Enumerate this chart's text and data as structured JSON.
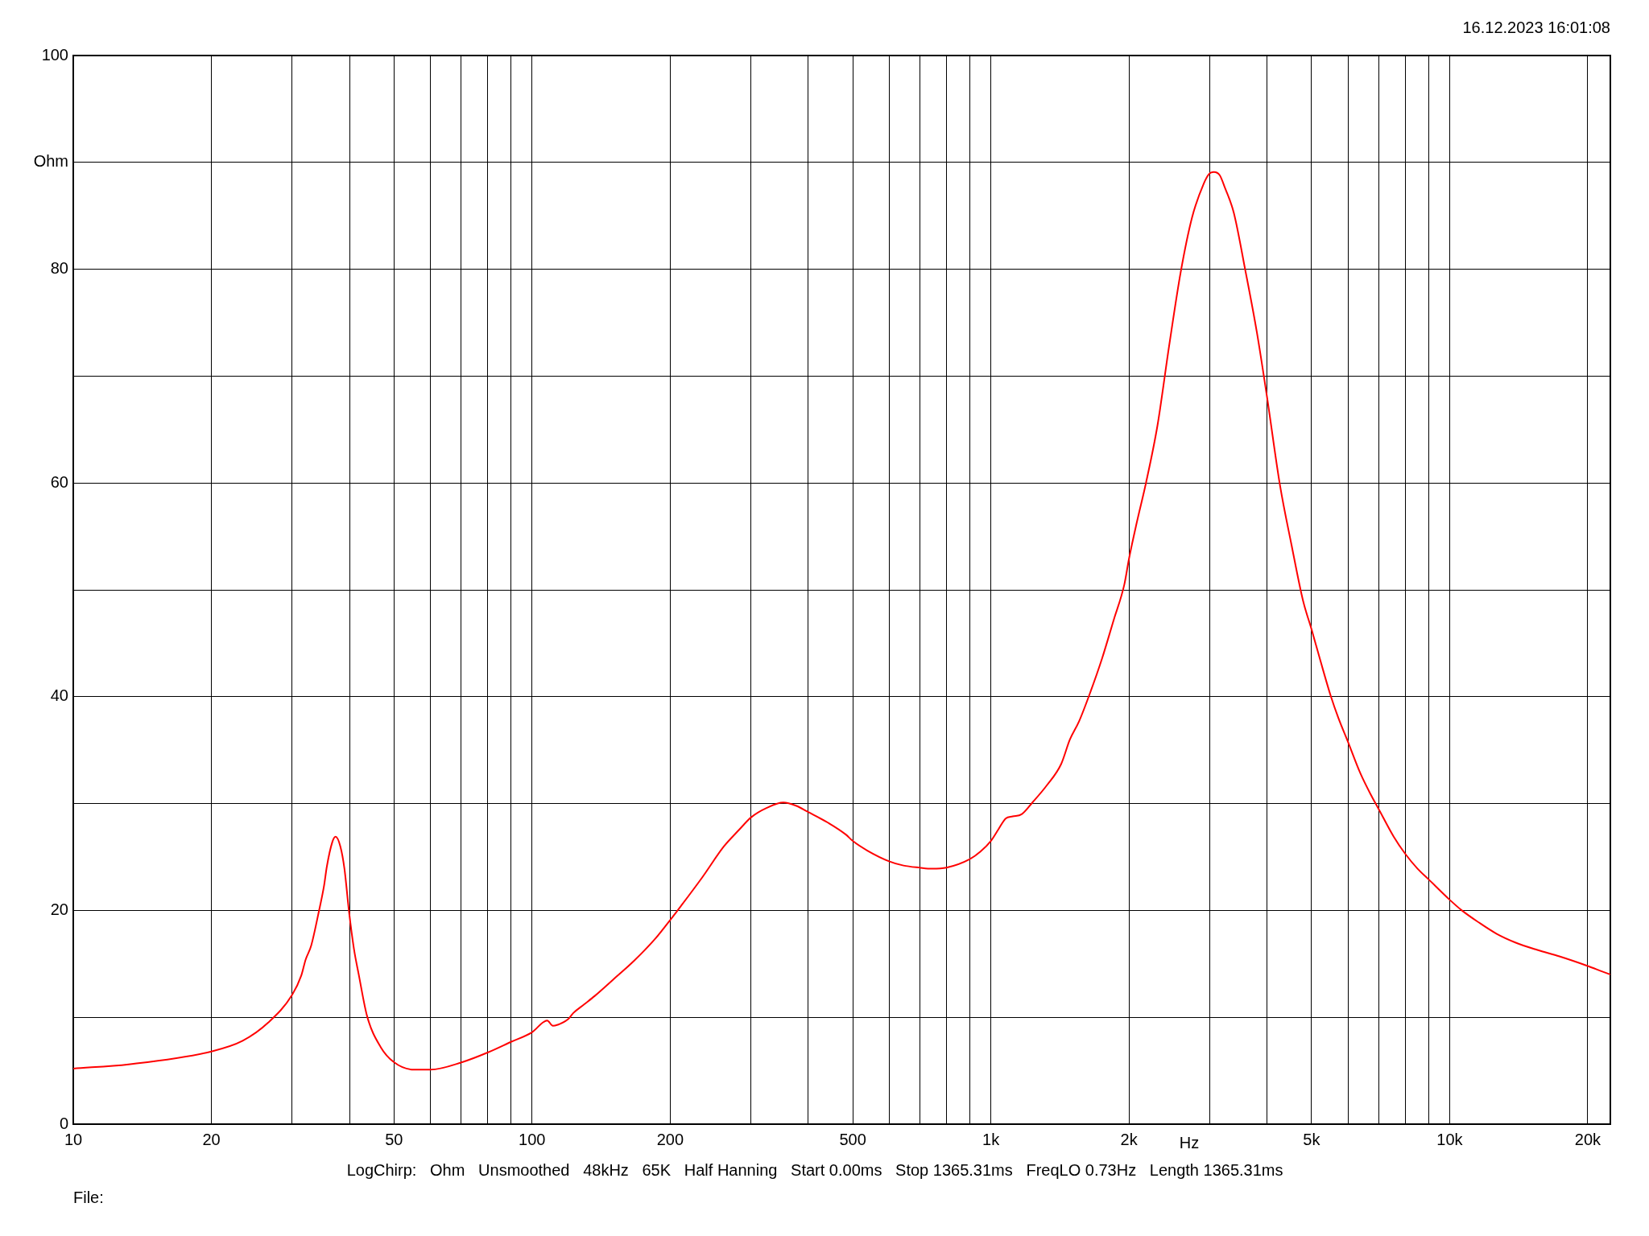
{
  "chart_data": {
    "type": "line",
    "xlabel": "Hz",
    "ylabel": "Ohm",
    "annotations": [
      "16.12.2023 16:01:08",
      "LogChirp:   Ohm   Unsmoothed   48kHz   65K   Half Hanning   Start 0.00ms   Stop 1365.31ms   FreqLO 0.73Hz   Length 1365.31ms",
      "File:"
    ],
    "x": [
      10,
      13.2,
      20,
      23.4,
      26.6,
      30,
      31.4,
      32.1,
      33,
      34.3,
      35.2,
      35.7,
      36.7,
      37.3,
      38.2,
      39,
      39.9,
      40.9,
      41.9,
      43.7,
      46.8,
      50,
      55.4,
      60,
      70.4,
      80,
      90,
      100,
      107.9,
      111,
      113.7,
      119.7,
      123,
      129.8,
      137,
      150,
      167,
      186,
      200,
      211,
      235,
      262,
      282,
      300,
      325,
      353,
      376,
      400,
      442,
      483,
      500,
      538,
      600,
      645,
      700,
      744,
      800,
      900,
      949,
      1000,
      1039,
      1077,
      1116,
      1167,
      1232,
      1324,
      1423,
      1487,
      1557,
      1650,
      1748,
      1853,
      1954,
      2000,
      2080,
      2178,
      2308,
      2446,
      2592,
      2747,
      2910,
      2988,
      3062,
      3154,
      3239,
      3384,
      3586,
      3800,
      4000,
      4267,
      4522,
      4790,
      5000,
      5217,
      5512,
      5722,
      6000,
      6393,
      6757,
      7000,
      7551,
      8000,
      8514,
      9000,
      10000,
      10630,
      11550,
      12670,
      13900,
      15530,
      17350,
      20000,
      21460,
      22400
    ],
    "series": [
      {
        "color": "#ff0000",
        "values": [
          5.2,
          5.6,
          6.8,
          7.8,
          9.5,
          12.1,
          13.9,
          15.4,
          16.7,
          19.9,
          22.3,
          24.1,
          26.4,
          26.9,
          26.0,
          23.9,
          19.9,
          16.4,
          14.0,
          10.1,
          7.2,
          5.8,
          5.1,
          5.1,
          5.8,
          6.7,
          7.7,
          8.6,
          9.7,
          9.2,
          9.3,
          9.8,
          10.4,
          11.2,
          12.0,
          13.5,
          15.3,
          17.4,
          19.1,
          20.4,
          23.1,
          26.0,
          27.5,
          28.7,
          29.6,
          30.1,
          29.8,
          29.2,
          28.2,
          27.1,
          26.5,
          25.6,
          24.6,
          24.2,
          24.0,
          23.9,
          24.0,
          24.8,
          25.5,
          26.5,
          27.6,
          28.6,
          28.8,
          29.0,
          30.1,
          31.7,
          33.7,
          36.0,
          37.7,
          40.5,
          43.6,
          47.2,
          50.5,
          52.9,
          56.3,
          60.0,
          65.4,
          72.8,
          79.7,
          84.9,
          88.0,
          88.9,
          89.1,
          88.8,
          87.6,
          85.3,
          79.9,
          74.1,
          68.0,
          59.8,
          54.2,
          49.0,
          46.3,
          43.5,
          40.0,
          38.0,
          35.8,
          32.8,
          30.7,
          29.5,
          26.9,
          25.3,
          23.9,
          22.9,
          21.0,
          20.0,
          18.9,
          17.8,
          17.0,
          16.3,
          15.7,
          14.8,
          14.3,
          14.0
        ]
      }
    ],
    "xlim": [
      10,
      22400
    ],
    "ylim": [
      0,
      100
    ],
    "xticks": [
      10,
      20,
      {
        "value": 30,
        "label": null
      },
      {
        "value": 40,
        "label": null
      },
      50,
      {
        "value": 60,
        "label": null
      },
      {
        "value": 70,
        "label": null
      },
      {
        "value": 80,
        "label": null
      },
      {
        "value": 90,
        "label": null
      },
      100,
      200,
      {
        "value": 300,
        "label": null
      },
      {
        "value": 400,
        "label": null
      },
      500,
      {
        "value": 600,
        "label": null
      },
      {
        "value": 700,
        "label": null
      },
      {
        "value": 800,
        "label": null
      },
      {
        "value": 900,
        "label": null
      },
      {
        "value": 1000,
        "label": "1k"
      },
      {
        "value": 2000,
        "label": "2k"
      },
      {
        "value": 3000,
        "label": null
      },
      {
        "value": 4000,
        "label": null
      },
      {
        "value": 5000,
        "label": "5k"
      },
      {
        "value": 6000,
        "label": null
      },
      {
        "value": 7000,
        "label": null
      },
      {
        "value": 8000,
        "label": null
      },
      {
        "value": 9000,
        "label": null
      },
      {
        "value": 10000,
        "label": "10k"
      },
      {
        "value": 20000,
        "label": "20k"
      }
    ],
    "yticks": [
      0,
      {
        "value": 10,
        "label": null
      },
      20,
      {
        "value": 30,
        "label": null
      },
      40,
      {
        "value": 50,
        "label": null
      },
      60,
      {
        "value": 70,
        "label": null
      },
      80,
      {
        "value": 90,
        "label": null
      },
      100
    ],
    "log": "x",
    "grid": true,
    "legend": false,
    "marker": "none"
  }
}
